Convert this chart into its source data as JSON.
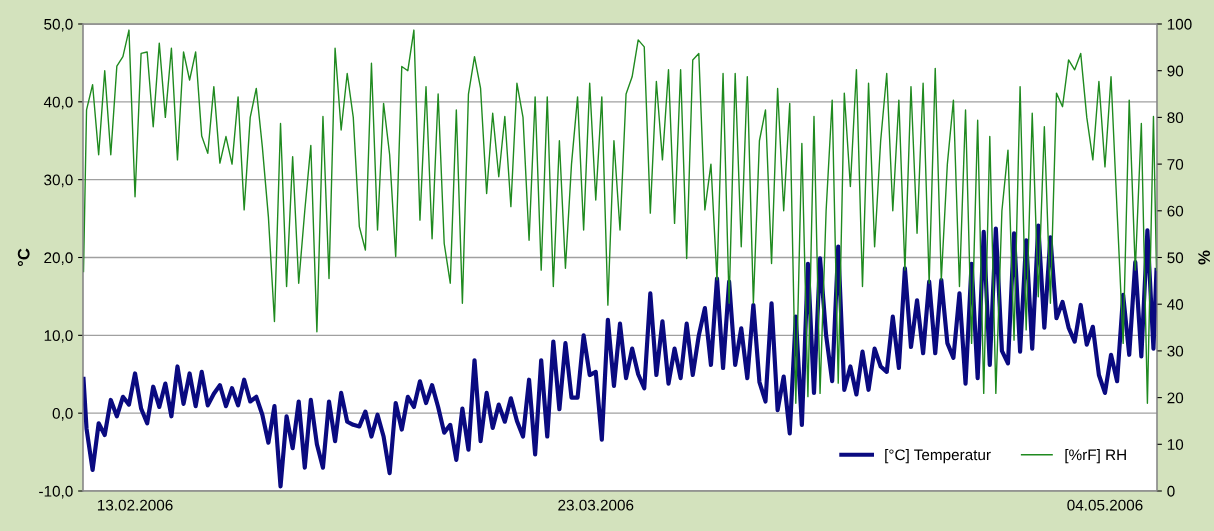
{
  "chart_data": {
    "type": "line",
    "ylabel": "°C",
    "y2label": "%",
    "xlim": [
      "2006-02-08T17:00",
      "2006-05-08T07:00"
    ],
    "xticks": [
      {
        "value": "2006-02-13",
        "label": "13.02.2006"
      },
      {
        "value": "2006-03-23",
        "label": "23.03.2006"
      },
      {
        "value": "2006-05-04",
        "label": "04.05.2006"
      }
    ],
    "ylim": [
      -10,
      50
    ],
    "yticks": [
      {
        "value": -10,
        "label": "-10,0"
      },
      {
        "value": 0,
        "label": "0,0"
      },
      {
        "value": 10,
        "label": "10,0"
      },
      {
        "value": 20,
        "label": "20,0"
      },
      {
        "value": 30,
        "label": "30,0"
      },
      {
        "value": 40,
        "label": "40,0"
      },
      {
        "value": 50,
        "label": "50,0"
      }
    ],
    "y2lim": [
      0,
      100
    ],
    "y2ticks": [
      0,
      10,
      20,
      30,
      40,
      50,
      60,
      70,
      80,
      90,
      100
    ],
    "grid": "y",
    "legend": "bottom right",
    "x": [
      "2006-02-08T18:00",
      "2006-02-09T00:00",
      "2006-02-09T12:00",
      "2006-02-10T00:00",
      "2006-02-10T12:00",
      "2006-02-11T00:00",
      "2006-02-11T12:00",
      "2006-02-12T00:00",
      "2006-02-12T12:00",
      "2006-02-13T00:00",
      "2006-02-13T12:00",
      "2006-02-14T00:00",
      "2006-02-14T12:00",
      "2006-02-15T00:00",
      "2006-02-15T12:00",
      "2006-02-16T00:00",
      "2006-02-16T12:00",
      "2006-02-17T00:00",
      "2006-02-17T12:00",
      "2006-02-18T00:00",
      "2006-02-18T12:00",
      "2006-02-19T00:00",
      "2006-02-19T12:00",
      "2006-02-20T00:00",
      "2006-02-20T12:00",
      "2006-02-21T00:00",
      "2006-02-21T12:00",
      "2006-02-22T00:00",
      "2006-02-22T12:00",
      "2006-02-23T00:00",
      "2006-02-23T12:00",
      "2006-02-24T00:00",
      "2006-02-24T12:00",
      "2006-02-25T00:00",
      "2006-02-25T12:00",
      "2006-02-26T00:00",
      "2006-02-26T12:00",
      "2006-02-27T00:00",
      "2006-02-27T12:00",
      "2006-02-28T00:00",
      "2006-02-28T12:00",
      "2006-03-01T00:00",
      "2006-03-01T12:00",
      "2006-03-02T00:00",
      "2006-03-02T12:00",
      "2006-03-03T00:00",
      "2006-03-03T12:00",
      "2006-03-04T00:00",
      "2006-03-04T12:00",
      "2006-03-05T00:00",
      "2006-03-05T12:00",
      "2006-03-06T00:00",
      "2006-03-06T12:00",
      "2006-03-07T00:00",
      "2006-03-07T12:00",
      "2006-03-08T00:00",
      "2006-03-08T12:00",
      "2006-03-09T00:00",
      "2006-03-09T12:00",
      "2006-03-10T00:00",
      "2006-03-10T12:00",
      "2006-03-11T00:00",
      "2006-03-11T12:00",
      "2006-03-12T00:00",
      "2006-03-12T12:00",
      "2006-03-13T00:00",
      "2006-03-13T12:00",
      "2006-03-14T00:00",
      "2006-03-14T12:00",
      "2006-03-15T00:00",
      "2006-03-15T12:00",
      "2006-03-16T00:00",
      "2006-03-16T12:00",
      "2006-03-17T00:00",
      "2006-03-17T12:00",
      "2006-03-18T00:00",
      "2006-03-18T12:00",
      "2006-03-19T00:00",
      "2006-03-19T12:00",
      "2006-03-20T00:00",
      "2006-03-20T12:00",
      "2006-03-21T00:00",
      "2006-03-21T12:00",
      "2006-03-22T00:00",
      "2006-03-22T12:00",
      "2006-03-23T00:00",
      "2006-03-23T12:00",
      "2006-03-24T00:00",
      "2006-03-24T12:00",
      "2006-03-25T00:00",
      "2006-03-25T12:00",
      "2006-03-26T00:00",
      "2006-03-26T12:00",
      "2006-03-27T00:00",
      "2006-03-27T12:00",
      "2006-03-28T00:00",
      "2006-03-28T12:00",
      "2006-03-29T00:00",
      "2006-03-29T12:00",
      "2006-03-30T00:00",
      "2006-03-30T12:00",
      "2006-03-31T00:00",
      "2006-03-31T12:00",
      "2006-04-01T00:00",
      "2006-04-01T12:00",
      "2006-04-02T00:00",
      "2006-04-02T12:00",
      "2006-04-03T00:00",
      "2006-04-03T12:00",
      "2006-04-04T00:00",
      "2006-04-04T12:00",
      "2006-04-05T00:00",
      "2006-04-05T12:00",
      "2006-04-06T00:00",
      "2006-04-06T12:00",
      "2006-04-07T00:00",
      "2006-04-07T12:00",
      "2006-04-08T00:00",
      "2006-04-08T12:00",
      "2006-04-09T00:00",
      "2006-04-09T12:00",
      "2006-04-10T00:00",
      "2006-04-10T12:00",
      "2006-04-11T00:00",
      "2006-04-11T12:00",
      "2006-04-12T00:00",
      "2006-04-12T12:00",
      "2006-04-13T00:00",
      "2006-04-13T12:00",
      "2006-04-14T00:00",
      "2006-04-14T12:00",
      "2006-04-15T00:00",
      "2006-04-15T12:00",
      "2006-04-16T00:00",
      "2006-04-16T12:00",
      "2006-04-17T00:00",
      "2006-04-17T12:00",
      "2006-04-18T00:00",
      "2006-04-18T12:00",
      "2006-04-19T00:00",
      "2006-04-19T12:00",
      "2006-04-20T00:00",
      "2006-04-20T12:00",
      "2006-04-21T00:00",
      "2006-04-21T12:00",
      "2006-04-22T00:00",
      "2006-04-22T12:00",
      "2006-04-23T00:00",
      "2006-04-23T12:00",
      "2006-04-24T00:00",
      "2006-04-24T12:00",
      "2006-04-25T00:00",
      "2006-04-25T12:00",
      "2006-04-26T00:00",
      "2006-04-26T12:00",
      "2006-04-27T00:00",
      "2006-04-27T12:00",
      "2006-04-28T00:00",
      "2006-04-28T12:00",
      "2006-04-29T00:00",
      "2006-04-29T12:00",
      "2006-04-30T00:00",
      "2006-04-30T12:00",
      "2006-05-01T00:00",
      "2006-05-01T12:00",
      "2006-05-02T00:00",
      "2006-05-02T12:00",
      "2006-05-03T00:00",
      "2006-05-03T12:00",
      "2006-05-04T00:00",
      "2006-05-04T12:00",
      "2006-05-05T00:00",
      "2006-05-05T12:00",
      "2006-05-06T00:00",
      "2006-05-06T12:00",
      "2006-05-07T00:00",
      "2006-05-07T12:00",
      "2006-05-08T00:00",
      "2006-05-08T06:00"
    ],
    "series": [
      {
        "name": "[°C] Temperatur",
        "color": "#0a0a80",
        "axis": "y",
        "values": [
          4.4,
          -2,
          -7.3,
          -1.3,
          -2.8,
          1.7,
          -0.4,
          2.1,
          1.1,
          5.1,
          0.6,
          -1.3,
          3.4,
          0.8,
          3.8,
          -0.4,
          6.0,
          1.2,
          5.1,
          0.9,
          5.3,
          1.0,
          2.5,
          3.6,
          0.9,
          3.2,
          1.0,
          4.3,
          1.5,
          2.1,
          -0.2,
          -3.8,
          0.9,
          -9.4,
          -0.4,
          -4.5,
          1.5,
          -7.0,
          1.7,
          -4,
          -7.0,
          1.5,
          -3.6,
          2.6,
          -1.1,
          -1.5,
          -1.7,
          0.2,
          -3.0,
          -0.2,
          -3,
          -7.7,
          1.3,
          -2.1,
          2.1,
          0.8,
          4.1,
          1.3,
          3.6,
          0.8,
          -2.5,
          -1.5,
          -6,
          0.6,
          -4.7,
          6.8,
          -3.6,
          2.6,
          -1.9,
          1.1,
          -1.1,
          1.9,
          -1.0,
          -3.0,
          4.3,
          -5.3,
          6.8,
          -3.0,
          9.2,
          0.5,
          9.0,
          2.0,
          2.0,
          10.0,
          4.9,
          5.3,
          -3.4,
          12.0,
          3.5,
          11.5,
          4.5,
          8.3,
          5,
          3.2,
          15.4,
          4.9,
          11.8,
          3.8,
          8.3,
          4.5,
          11.5,
          4.9,
          10,
          13.5,
          6.2,
          17.3,
          5.8,
          16.9,
          6.2,
          10.9,
          4.5,
          13.9,
          4,
          1.5,
          14.1,
          0.4,
          4.7,
          -2.6,
          12.4,
          -1.5,
          19.2,
          2.6,
          19.9,
          10,
          4.1,
          21.4,
          3.0,
          6.0,
          2.4,
          7.9,
          3.0,
          8.3,
          6,
          5.3,
          12.4,
          5.8,
          18.6,
          8.5,
          14.5,
          7.7,
          16.9,
          7.7,
          17.1,
          9,
          7.1,
          15.4,
          3.8,
          19.2,
          4.5,
          23.3,
          6.2,
          23.7,
          8,
          6.4,
          23.1,
          7.9,
          22.2,
          8.3,
          24.1,
          11,
          22.6,
          12.2,
          14.3,
          11,
          9.2,
          13.9,
          8.8,
          11.1,
          4.9,
          2.6,
          7.5,
          4.1,
          15.2,
          7.5,
          19.4,
          7.3,
          23.5,
          8.3,
          18.4
        ]
      },
      {
        "name": "[%rF] RH",
        "color": "#1f8a1f",
        "axis": "y2",
        "values": [
          47,
          81.6,
          87,
          72,
          90,
          72,
          91,
          93,
          98.7,
          63,
          93.7,
          94,
          78,
          95.9,
          80,
          94.8,
          70.9,
          94,
          88,
          94,
          76,
          72.3,
          86.6,
          70.2,
          75.9,
          70,
          84.4,
          60.2,
          80,
          86.2,
          73.7,
          58.7,
          36.3,
          78.7,
          43.8,
          71.6,
          44.5,
          60,
          74,
          34.1,
          80.2,
          45.5,
          94.8,
          77.3,
          89.4,
          80,
          56.6,
          51.6,
          91.6,
          55.9,
          83,
          72,
          50.2,
          90.9,
          90,
          98.7,
          58,
          86.6,
          54,
          85,
          53,
          44.5,
          81.6,
          40.2,
          85,
          93,
          86.2,
          63.7,
          80.9,
          67.3,
          80.2,
          60.9,
          87.3,
          80,
          53.7,
          84.4,
          47.3,
          84.4,
          43.8,
          75,
          47.7,
          70,
          84.4,
          55.9,
          87.3,
          62.3,
          84.4,
          39.8,
          75,
          55.9,
          85,
          88.7,
          96.6,
          95.1,
          59.5,
          87.7,
          70.9,
          90.2,
          57.3,
          90.2,
          49.8,
          92.3,
          93.7,
          60.2,
          70,
          45.2,
          89.4,
          40.2,
          89.4,
          52.3,
          88.7,
          40.2,
          75,
          81.6,
          48.7,
          86.2,
          60,
          83,
          18.8,
          74.4,
          20.2,
          80.2,
          20.9,
          60,
          83.7,
          23.1,
          85.2,
          65.2,
          90.2,
          43.8,
          87.3,
          52.3,
          75,
          89.4,
          60,
          83.7,
          47.3,
          86.6,
          55.2,
          87.3,
          44.5,
          90.5,
          45.2,
          70,
          83.7,
          43.8,
          81.6,
          31.6,
          79.4,
          20.9,
          75.9,
          20.9,
          60,
          73,
          32.3,
          86.6,
          34.5,
          80.9,
          41.6,
          78,
          40.2,
          85.2,
          82.3,
          92.3,
          90.2,
          93.7,
          80,
          70.9,
          87.7,
          69.4,
          88.7,
          60,
          31.6,
          83.7,
          47.3,
          78.7,
          18.8,
          80.2,
          47.3
        ]
      }
    ]
  }
}
